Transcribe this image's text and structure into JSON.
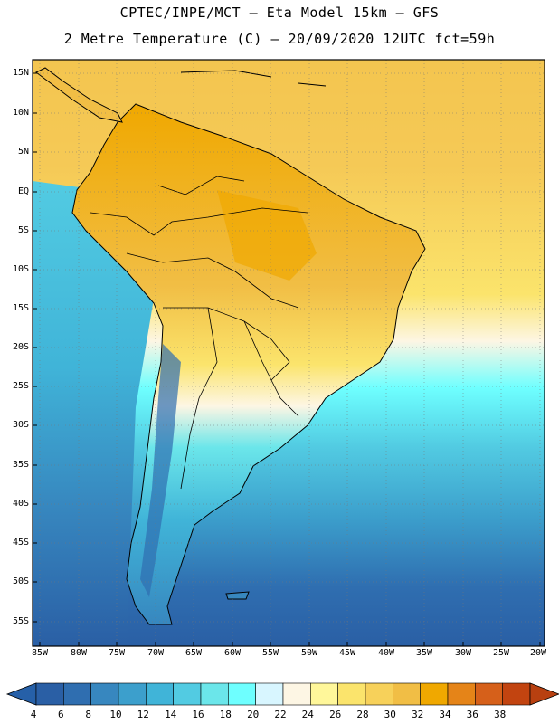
{
  "title_line1": "CPTEC/INPE/MCT –  Eta Model 15km – GFS",
  "title_line2": "2 Metre Temperature (C) – 20/09/2020 12UTC fct=59h",
  "lat_labels": [
    "15N",
    "10N",
    "5N",
    "EQ",
    "5S",
    "10S",
    "15S",
    "20S",
    "25S",
    "30S",
    "35S",
    "40S",
    "45S",
    "50S",
    "55S"
  ],
  "lon_labels": [
    "85W",
    "80W",
    "75W",
    "70W",
    "65W",
    "60W",
    "55W",
    "50W",
    "45W",
    "40W",
    "35W",
    "30W",
    "25W",
    "20W"
  ],
  "colorbar": {
    "labels": [
      "4",
      "6",
      "8",
      "10",
      "12",
      "14",
      "16",
      "18",
      "20",
      "22",
      "24",
      "26",
      "28",
      "30",
      "32",
      "34",
      "36",
      "38"
    ],
    "colors": [
      "#2a5fa5",
      "#2f6eb0",
      "#3787bf",
      "#3c9fcc",
      "#40b4d8",
      "#52cbe2",
      "#6be6ea",
      "#6effff",
      "#d8f6ff",
      "#fdf6e4",
      "#fff79a",
      "#fbe46c",
      "#f7d15a",
      "#f1be45",
      "#f0a800",
      "#e58418",
      "#d6601a",
      "#c24410"
    ],
    "low_color": "#2660a8",
    "high_color": "#b84010"
  }
}
